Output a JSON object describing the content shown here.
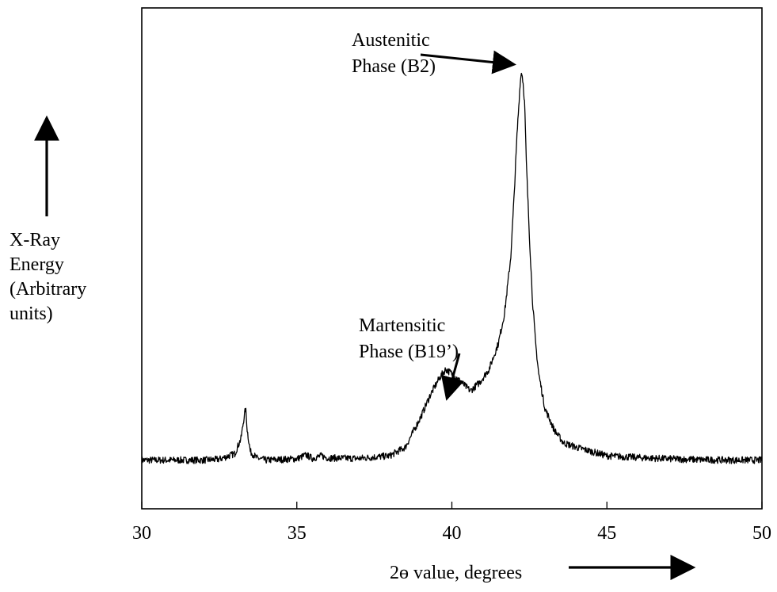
{
  "chart_data": {
    "type": "line",
    "title": "",
    "xlabel": "2ɵ value, degrees",
    "ylabel": [
      "X-Ray",
      "Energy",
      "(Arbitrary",
      "units)"
    ],
    "xlim": [
      30,
      50
    ],
    "ylim": [
      0,
      100
    ],
    "xticks": [
      30,
      35,
      40,
      45,
      50
    ],
    "yticks": [],
    "grid": false,
    "legend": "none",
    "series": [
      {
        "color": "#000000",
        "x": [
          30,
          31,
          32,
          32.5,
          33.0,
          33.2,
          33.3,
          33.35,
          33.4,
          33.5,
          33.7,
          34,
          35,
          35.3,
          35.5,
          35.8,
          36,
          37,
          38,
          38.5,
          39.0,
          39.3,
          39.6,
          39.8,
          40.0,
          40.3,
          40.6,
          40.9,
          41.2,
          41.5,
          41.7,
          41.9,
          42.0,
          42.1,
          42.2,
          42.25,
          42.3,
          42.35,
          42.4,
          42.5,
          42.6,
          42.7,
          42.8,
          43.0,
          43.3,
          43.6,
          44,
          44.5,
          45,
          46,
          47,
          48,
          49,
          50
        ],
        "y": [
          3,
          3,
          3,
          3.2,
          4.5,
          8,
          13,
          15,
          10,
          5,
          3.5,
          3,
          3.3,
          4.2,
          3.4,
          4,
          3.5,
          3.4,
          4,
          6,
          13,
          18,
          22,
          24,
          23,
          21,
          19,
          21,
          24,
          30,
          37,
          50,
          63,
          78,
          90,
          93,
          90,
          85,
          72,
          55,
          40,
          30,
          23,
          15,
          10,
          7,
          6,
          5,
          4,
          3.6,
          3.3,
          3.1,
          3.0,
          3.0
        ]
      }
    ],
    "annotations": [
      {
        "lines": [
          "Austenitic",
          "Phase (B2)"
        ],
        "x": 42.3,
        "y": 93
      },
      {
        "lines": [
          "Martensitic",
          "Phase (B19’)"
        ],
        "x": 40.0,
        "y": 24
      }
    ]
  }
}
